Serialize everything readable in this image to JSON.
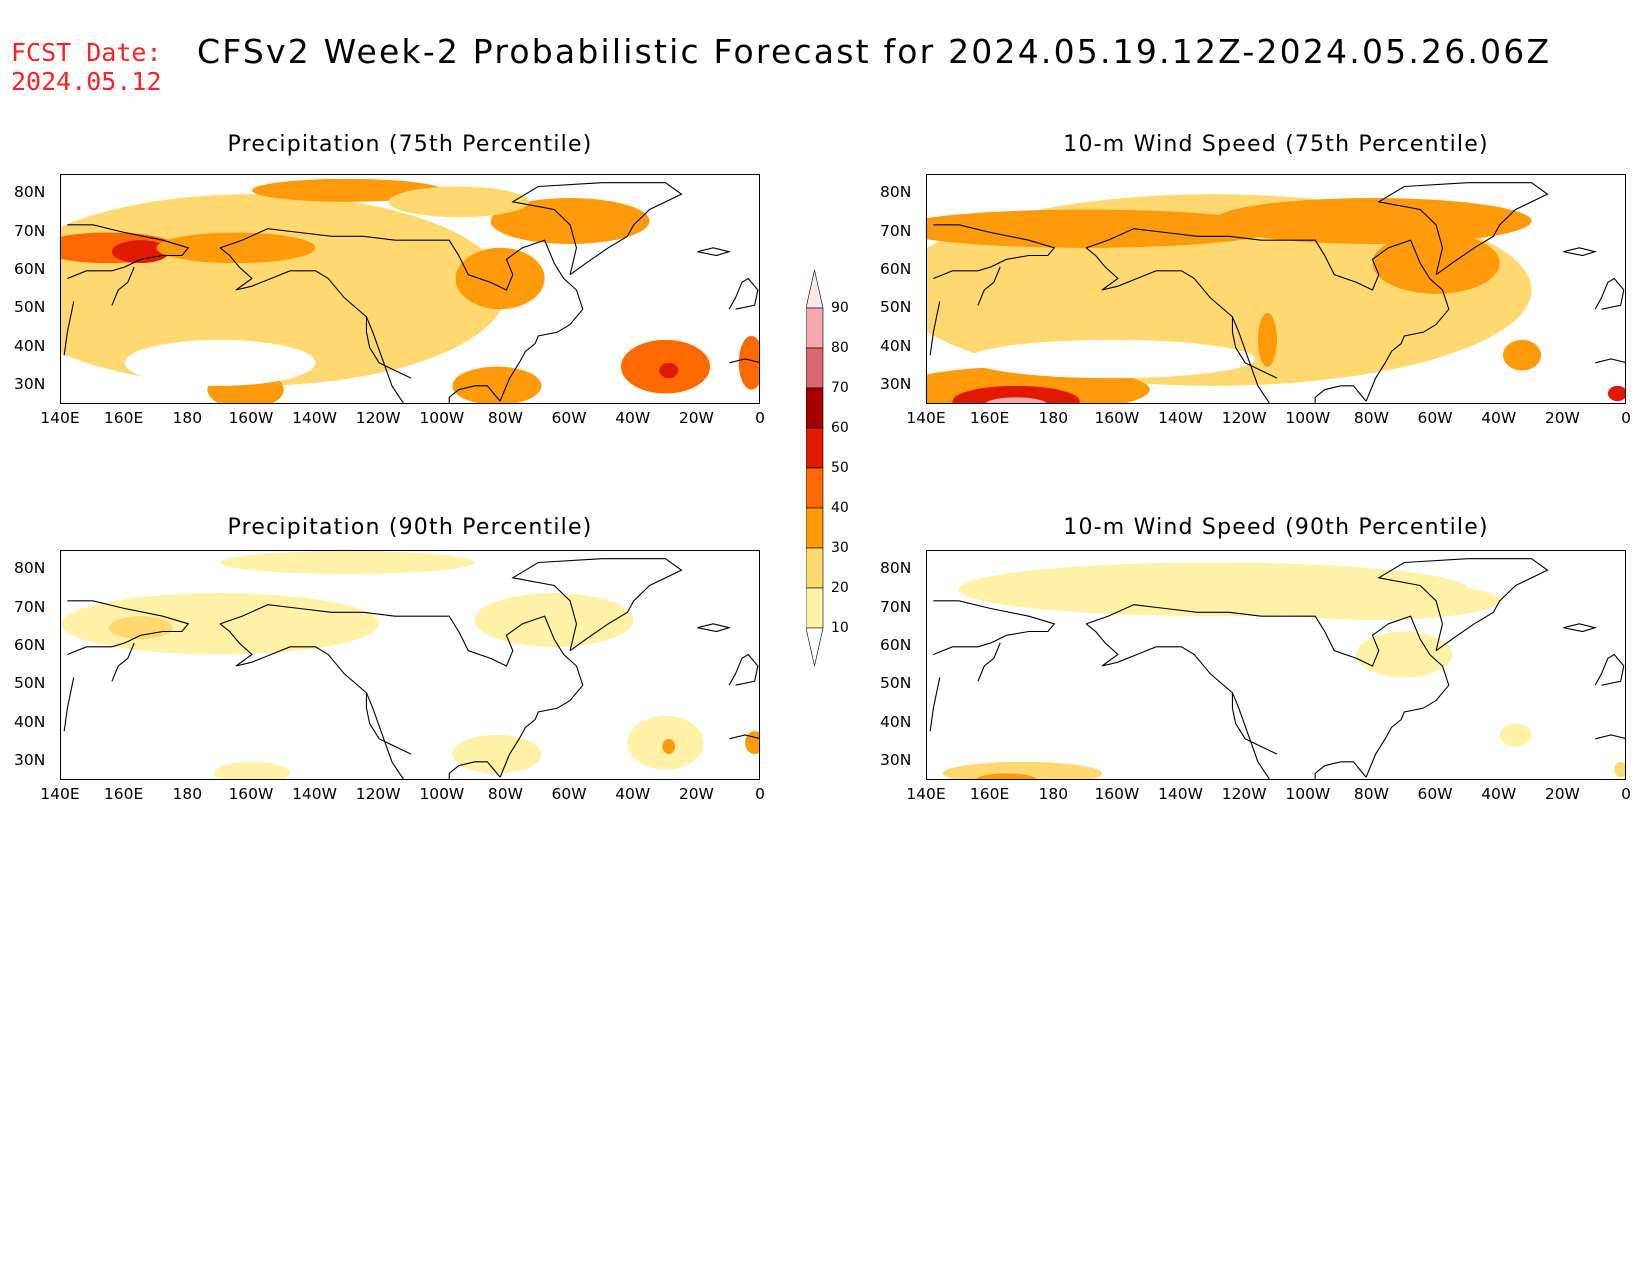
{
  "header": {
    "fcst_label": "FCST Date:",
    "fcst_date": "2024.05.12",
    "title": "CFSv2 Week-2 Probabilistic Forecast for 2024.05.19.12Z-2024.05.26.06Z"
  },
  "colors": {
    "fcst_text": "#ff2020",
    "levels": [
      "#ffffff",
      "#fff1a6",
      "#ffd870",
      "#ff9a0a",
      "#ff6a00",
      "#e01a00",
      "#a50000",
      "#d9686e",
      "#f3a8ae",
      "#fde6e8"
    ]
  },
  "axes": {
    "x_ticks": [
      "140E",
      "160E",
      "180",
      "160W",
      "140W",
      "120W",
      "100W",
      "80W",
      "60W",
      "40W",
      "20W",
      "0"
    ],
    "y_ticks": [
      "80N",
      "70N",
      "60N",
      "50N",
      "40N",
      "30N"
    ]
  },
  "panels": [
    {
      "id": "precip75",
      "title": "Precipitation (75th Percentile)"
    },
    {
      "id": "wind75",
      "title": "10-m Wind Speed (75th Percentile)"
    },
    {
      "id": "precip90",
      "title": "Precipitation (90th Percentile)"
    },
    {
      "id": "wind90",
      "title": "10-m Wind Speed (90th Percentile)"
    }
  ],
  "colorbar": {
    "labels": [
      "90",
      "80",
      "70",
      "60",
      "50",
      "40",
      "30",
      "20",
      "10"
    ]
  },
  "chart_data": {
    "type": "heatmap",
    "lon_range": [
      140,
      360
    ],
    "lat_range": [
      25,
      85
    ],
    "levels": [
      10,
      20,
      30,
      40,
      50,
      60,
      70,
      80,
      90
    ],
    "fields": {
      "precip75": [
        {
          "lon": 200,
          "lat": 55,
          "rx": 80,
          "ry": 25,
          "v": 22
        },
        {
          "lon": 155,
          "lat": 66,
          "rx": 22,
          "ry": 4,
          "v": 45
        },
        {
          "lon": 165,
          "lat": 65,
          "rx": 9,
          "ry": 3,
          "v": 55
        },
        {
          "lon": 195,
          "lat": 66,
          "rx": 25,
          "ry": 4,
          "v": 38
        },
        {
          "lon": 230,
          "lat": 81,
          "rx": 30,
          "ry": 3,
          "v": 35
        },
        {
          "lon": 300,
          "lat": 73,
          "rx": 25,
          "ry": 6,
          "v": 35
        },
        {
          "lon": 278,
          "lat": 58,
          "rx": 14,
          "ry": 8,
          "v": 33
        },
        {
          "lon": 330,
          "lat": 35,
          "rx": 14,
          "ry": 7,
          "v": 40
        },
        {
          "lon": 331,
          "lat": 34,
          "rx": 3,
          "ry": 2,
          "v": 52
        },
        {
          "lon": 277,
          "lat": 30,
          "rx": 14,
          "ry": 5,
          "v": 38
        },
        {
          "lon": 198,
          "lat": 29,
          "rx": 12,
          "ry": 5,
          "v": 38
        },
        {
          "lon": 357,
          "lat": 36,
          "rx": 4,
          "ry": 7,
          "v": 48
        },
        {
          "lon": 265,
          "lat": 78,
          "rx": 22,
          "ry": 4,
          "v": 25
        },
        {
          "lon": 190,
          "lat": 36,
          "rx": 30,
          "ry": 6,
          "v": 4
        }
      ],
      "wind75": [
        {
          "lon": 230,
          "lat": 55,
          "rx": 100,
          "ry": 25,
          "v": 20
        },
        {
          "lon": 190,
          "lat": 71,
          "rx": 60,
          "ry": 5,
          "v": 36
        },
        {
          "lon": 280,
          "lat": 73,
          "rx": 50,
          "ry": 6,
          "v": 34
        },
        {
          "lon": 300,
          "lat": 62,
          "rx": 20,
          "ry": 8,
          "v": 32
        },
        {
          "lon": 170,
          "lat": 29,
          "rx": 40,
          "ry": 6,
          "v": 30
        },
        {
          "lon": 168,
          "lat": 26,
          "rx": 20,
          "ry": 4,
          "v": 55
        },
        {
          "lon": 168,
          "lat": 25,
          "rx": 10,
          "ry": 2,
          "v": 80
        },
        {
          "lon": 247,
          "lat": 42,
          "rx": 3,
          "ry": 7,
          "v": 38
        },
        {
          "lon": 198,
          "lat": 37,
          "rx": 45,
          "ry": 5,
          "v": 5
        },
        {
          "lon": 327,
          "lat": 38,
          "rx": 6,
          "ry": 4,
          "v": 38
        },
        {
          "lon": 357,
          "lat": 28,
          "rx": 3,
          "ry": 2,
          "v": 50
        }
      ],
      "precip90": [
        {
          "lon": 190,
          "lat": 66,
          "rx": 50,
          "ry": 8,
          "v": 15
        },
        {
          "lon": 165,
          "lat": 65,
          "rx": 10,
          "ry": 3,
          "v": 25
        },
        {
          "lon": 295,
          "lat": 67,
          "rx": 25,
          "ry": 7,
          "v": 14
        },
        {
          "lon": 230,
          "lat": 82,
          "rx": 40,
          "ry": 3,
          "v": 13
        },
        {
          "lon": 330,
          "lat": 35,
          "rx": 12,
          "ry": 7,
          "v": 18
        },
        {
          "lon": 331,
          "lat": 34,
          "rx": 2,
          "ry": 2,
          "v": 35
        },
        {
          "lon": 277,
          "lat": 32,
          "rx": 14,
          "ry": 5,
          "v": 14
        },
        {
          "lon": 358,
          "lat": 35,
          "rx": 3,
          "ry": 3,
          "v": 30
        },
        {
          "lon": 200,
          "lat": 27,
          "rx": 12,
          "ry": 3,
          "v": 13
        }
      ],
      "wind90": [
        {
          "lon": 230,
          "lat": 75,
          "rx": 80,
          "ry": 7,
          "v": 15
        },
        {
          "lon": 280,
          "lat": 72,
          "rx": 40,
          "ry": 5,
          "v": 18
        },
        {
          "lon": 170,
          "lat": 27,
          "rx": 25,
          "ry": 3,
          "v": 22
        },
        {
          "lon": 165,
          "lat": 25,
          "rx": 10,
          "ry": 2,
          "v": 35
        },
        {
          "lon": 325,
          "lat": 37,
          "rx": 5,
          "ry": 3,
          "v": 14
        },
        {
          "lon": 358,
          "lat": 28,
          "rx": 2,
          "ry": 2,
          "v": 25
        },
        {
          "lon": 290,
          "lat": 58,
          "rx": 15,
          "ry": 6,
          "v": 12
        }
      ]
    }
  }
}
